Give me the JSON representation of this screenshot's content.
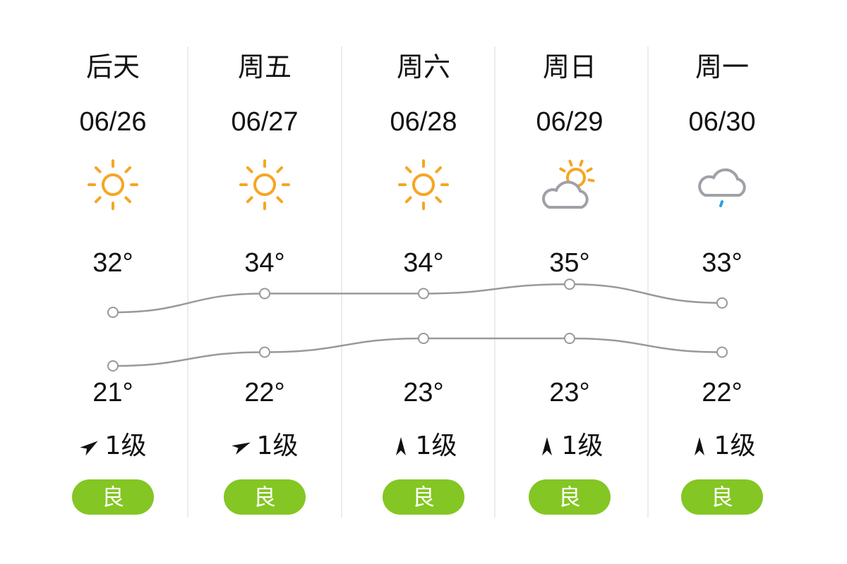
{
  "forecast": [
    {
      "day": "后天",
      "date": "06/26",
      "icon": "sunny-icon",
      "high": "32°",
      "low": "21°",
      "high_value": 32,
      "low_value": 21,
      "wind_direction_deg": 55,
      "wind_level": "1级",
      "aqi": "良"
    },
    {
      "day": "周五",
      "date": "06/27",
      "icon": "sunny-icon",
      "high": "34°",
      "low": "22°",
      "high_value": 34,
      "low_value": 22,
      "wind_direction_deg": 65,
      "wind_level": "1级",
      "aqi": "良"
    },
    {
      "day": "周六",
      "date": "06/28",
      "icon": "sunny-icon",
      "high": "34°",
      "low": "23°",
      "high_value": 34,
      "low_value": 23,
      "wind_direction_deg": 0,
      "wind_level": "1级",
      "aqi": "良"
    },
    {
      "day": "周日",
      "date": "06/29",
      "icon": "partly-cloudy-icon",
      "high": "35°",
      "low": "23°",
      "high_value": 35,
      "low_value": 23,
      "wind_direction_deg": 0,
      "wind_level": "1级",
      "aqi": "良"
    },
    {
      "day": "周一",
      "date": "06/30",
      "icon": "light-rain-icon",
      "high": "33°",
      "low": "22°",
      "high_value": 33,
      "low_value": 22,
      "wind_direction_deg": 0,
      "wind_level": "1级",
      "aqi": "良"
    }
  ],
  "colors": {
    "aqi_good": "#84c623",
    "sun": "#f5a623",
    "cloud": "#a0a0a8",
    "rain": "#2a9fe0",
    "line": "#999999"
  }
}
